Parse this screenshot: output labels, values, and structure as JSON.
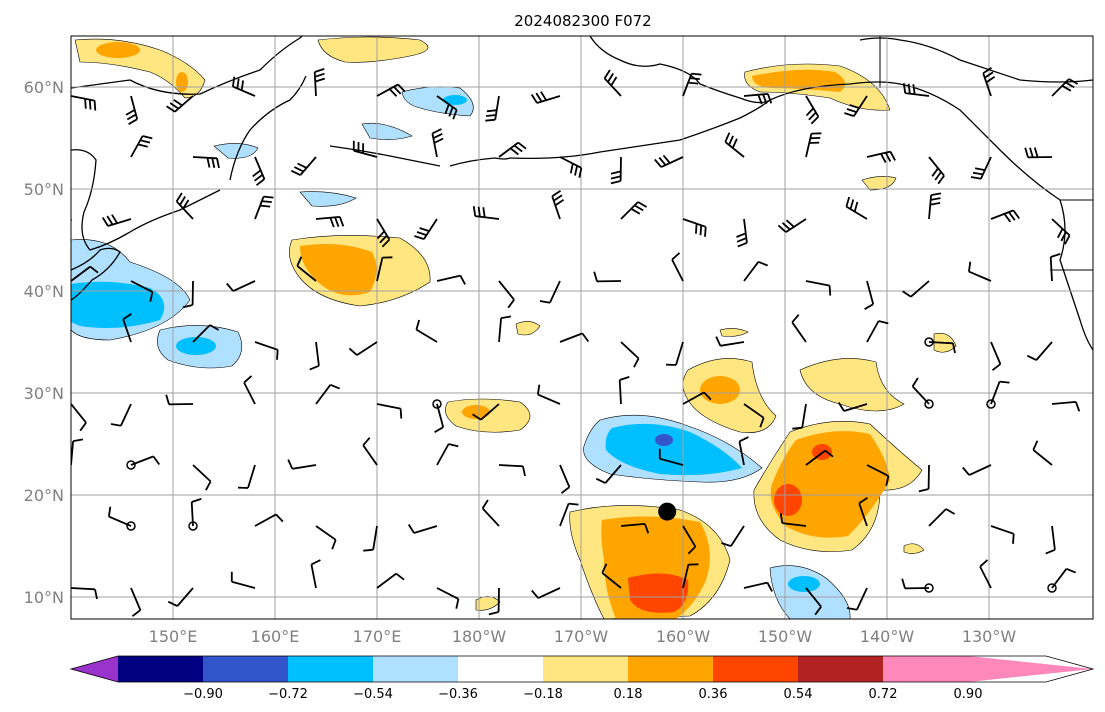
{
  "title": "2024082300 F072",
  "map": {
    "lat_labels": [
      "60°N",
      "50°N",
      "40°N",
      "30°N",
      "20°N",
      "10°N"
    ],
    "lon_labels": [
      "150°E",
      "160°E",
      "170°E",
      "180°W",
      "170°W",
      "160°W",
      "150°W",
      "140°W",
      "130°W"
    ],
    "extent": {
      "lon_min": 140,
      "lon_max": 242,
      "lat_min": 8,
      "lat_max": 65
    }
  },
  "colorbar": {
    "ticks": [
      "−0.90",
      "−0.72",
      "−0.54",
      "−0.36",
      "−0.18",
      "0.18",
      "0.36",
      "0.54",
      "0.72",
      "0.90"
    ],
    "colors": [
      "#9933cc",
      "#000080",
      "#3355cc",
      "#00bfff",
      "#b0e0ff",
      "#ffffff",
      "#ffe680",
      "#ffa500",
      "#ff4500",
      "#b22222",
      "#ff88bb"
    ]
  },
  "markers": {
    "storm_center": {
      "lon": 199.5,
      "lat": 18.5
    }
  }
}
